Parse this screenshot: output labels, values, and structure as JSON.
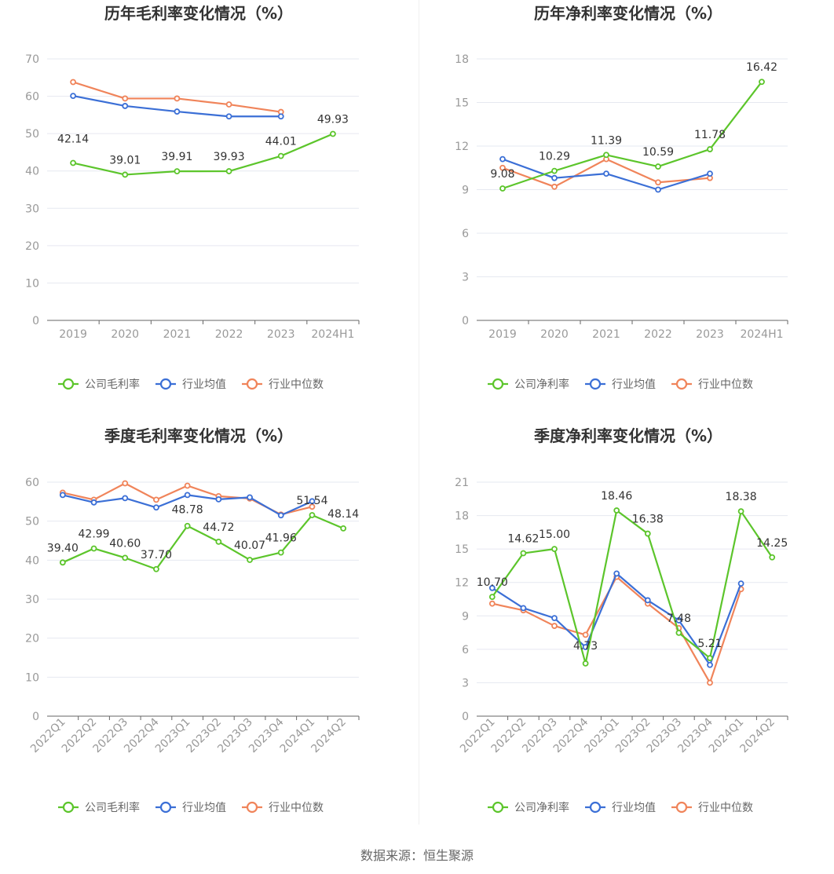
{
  "colors": {
    "company": "#5cc52b",
    "avg": "#3b6fd6",
    "median": "#f0845a",
    "grid": "#e6e8f0",
    "axis": "#999999",
    "title": "#333333"
  },
  "footer": {
    "source": "数据来源：恒生聚源"
  },
  "chart_data": [
    {
      "type": "line",
      "title": "历年毛利率变化情况（%）",
      "categories": [
        "2019",
        "2020",
        "2021",
        "2022",
        "2023",
        "2024H1"
      ],
      "yticks": [
        0,
        10,
        20,
        30,
        40,
        50,
        60,
        70
      ],
      "ylim": [
        0,
        70
      ],
      "series": [
        {
          "name": "公司毛利率",
          "role": "company",
          "values": [
            42.14,
            39.01,
            39.91,
            39.93,
            44.01,
            49.93
          ],
          "labels": [
            "42.14",
            "39.01",
            "39.91",
            "39.93",
            "44.01",
            "49.93"
          ]
        },
        {
          "name": "行业均值",
          "role": "avg",
          "values": [
            60.1,
            57.4,
            55.9,
            54.6,
            54.6,
            null
          ]
        },
        {
          "name": "行业中位数",
          "role": "median",
          "values": [
            63.8,
            59.4,
            59.4,
            57.8,
            55.8,
            null
          ]
        }
      ],
      "legend": "bottom",
      "grid": true
    },
    {
      "type": "line",
      "title": "历年净利率变化情况（%）",
      "categories": [
        "2019",
        "2020",
        "2021",
        "2022",
        "2023",
        "2024H1"
      ],
      "yticks": [
        0,
        3,
        6,
        9,
        12,
        15,
        18
      ],
      "ylim": [
        0,
        18
      ],
      "series": [
        {
          "name": "公司净利率",
          "role": "company",
          "values": [
            9.08,
            10.29,
            11.39,
            10.59,
            11.78,
            16.42
          ],
          "labels": [
            "9.08",
            "10.29",
            "11.39",
            "10.59",
            "11.78",
            "16.42"
          ]
        },
        {
          "name": "行业均值",
          "role": "avg",
          "values": [
            11.1,
            9.8,
            10.1,
            9.0,
            10.1,
            null
          ]
        },
        {
          "name": "行业中位数",
          "role": "median",
          "values": [
            10.5,
            9.2,
            11.1,
            9.5,
            9.8,
            null
          ]
        }
      ],
      "legend": "bottom",
      "grid": true
    },
    {
      "type": "line",
      "title": "季度毛利率变化情况（%）",
      "categories": [
        "2022Q1",
        "2022Q2",
        "2022Q3",
        "2022Q4",
        "2023Q1",
        "2023Q2",
        "2023Q3",
        "2023Q4",
        "2024Q1",
        "2024Q2"
      ],
      "yticks": [
        0,
        10,
        20,
        30,
        40,
        50,
        60
      ],
      "ylim": [
        0,
        60
      ],
      "series": [
        {
          "name": "公司毛利率",
          "role": "company",
          "values": [
            39.4,
            42.99,
            40.6,
            37.7,
            48.78,
            44.72,
            40.07,
            41.96,
            51.54,
            48.14
          ],
          "labels": [
            "39.40",
            "42.99",
            "40.60",
            "37.70",
            "48.78",
            "44.72",
            "40.07",
            "41.96",
            "51.54",
            "48.14"
          ]
        },
        {
          "name": "行业均值",
          "role": "avg",
          "values": [
            56.7,
            54.8,
            55.9,
            53.5,
            56.7,
            55.6,
            56.1,
            51.5,
            55.1,
            null
          ]
        },
        {
          "name": "行业中位数",
          "role": "median",
          "values": [
            57.3,
            55.5,
            59.7,
            55.5,
            59.1,
            56.4,
            55.8,
            51.7,
            53.7,
            null
          ]
        }
      ],
      "legend": "bottom",
      "grid": true
    },
    {
      "type": "line",
      "title": "季度净利率变化情况（%）",
      "categories": [
        "2022Q1",
        "2022Q2",
        "2022Q3",
        "2022Q4",
        "2023Q1",
        "2023Q2",
        "2023Q3",
        "2023Q4",
        "2024Q1",
        "2024Q2"
      ],
      "yticks": [
        0,
        3,
        6,
        9,
        12,
        15,
        18,
        21
      ],
      "ylim": [
        0,
        21
      ],
      "series": [
        {
          "name": "公司净利率",
          "role": "company",
          "values": [
            10.7,
            14.62,
            15.0,
            4.73,
            18.46,
            16.38,
            7.48,
            5.21,
            18.38,
            14.25
          ],
          "labels": [
            "10.70",
            "14.62",
            "15.00",
            "4.73",
            "18.46",
            "16.38",
            "7.48",
            "5.21",
            "18.38",
            "14.25"
          ]
        },
        {
          "name": "行业均值",
          "role": "avg",
          "values": [
            11.5,
            9.7,
            8.8,
            6.2,
            12.8,
            10.4,
            8.6,
            4.6,
            11.9,
            null
          ]
        },
        {
          "name": "行业中位数",
          "role": "median",
          "values": [
            10.1,
            9.5,
            8.1,
            7.3,
            12.5,
            10.1,
            7.9,
            3.0,
            11.4,
            null
          ]
        }
      ],
      "legend": "bottom",
      "grid": true
    }
  ]
}
